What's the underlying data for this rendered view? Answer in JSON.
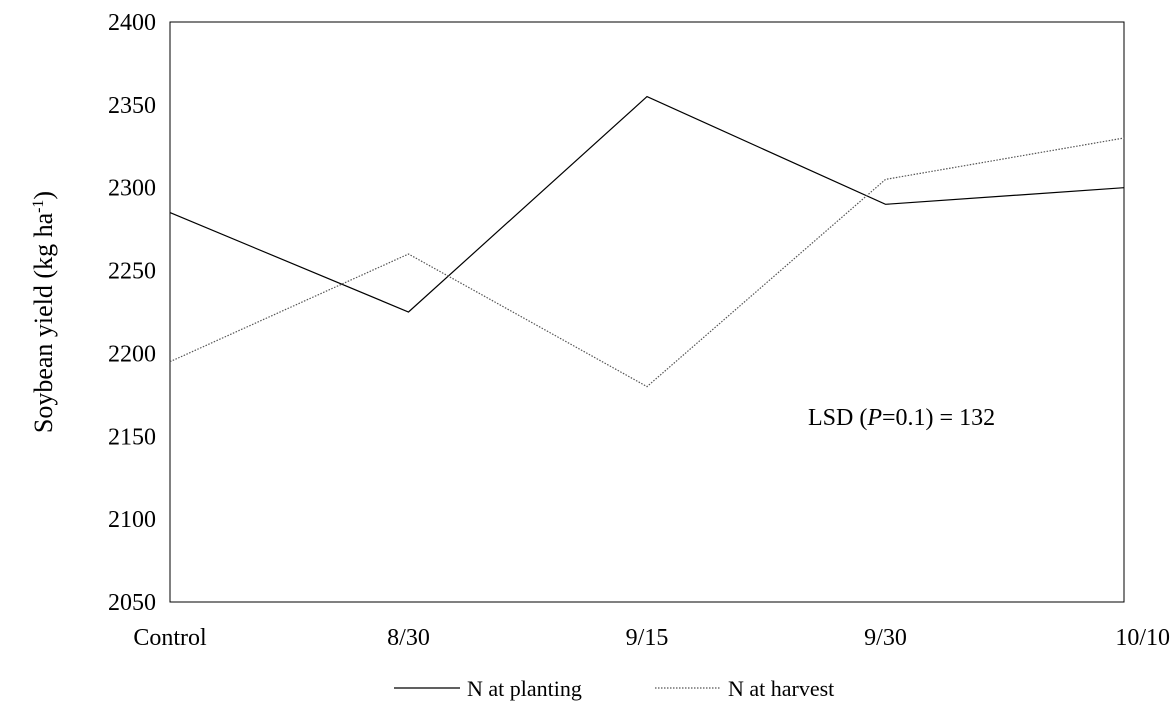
{
  "chart_data": {
    "type": "line",
    "categories": [
      "Control",
      "8/30",
      "9/15",
      "9/30",
      "10/10"
    ],
    "series": [
      {
        "name": "N at planting",
        "values": [
          2285,
          2225,
          2355,
          2290,
          2300
        ],
        "color": "#000000",
        "dash": "solid"
      },
      {
        "name": "N at harvest",
        "values": [
          2195,
          2260,
          2180,
          2305,
          2330
        ],
        "color": "#555555",
        "dash": "dotted"
      }
    ],
    "ylabel": {
      "main": "Soybean yield (kg ha",
      "sup": "-1",
      "end": ")"
    },
    "ylim": [
      2050,
      2400
    ],
    "yticks": [
      "2050",
      "2100",
      "2150",
      "2200",
      "2250",
      "2300",
      "2350",
      "2400"
    ],
    "annotation": {
      "prefix": "LSD (",
      "italic": "P",
      "suffix": "=0.1) = 132"
    },
    "grid": false,
    "legend_position": "bottom-center"
  }
}
